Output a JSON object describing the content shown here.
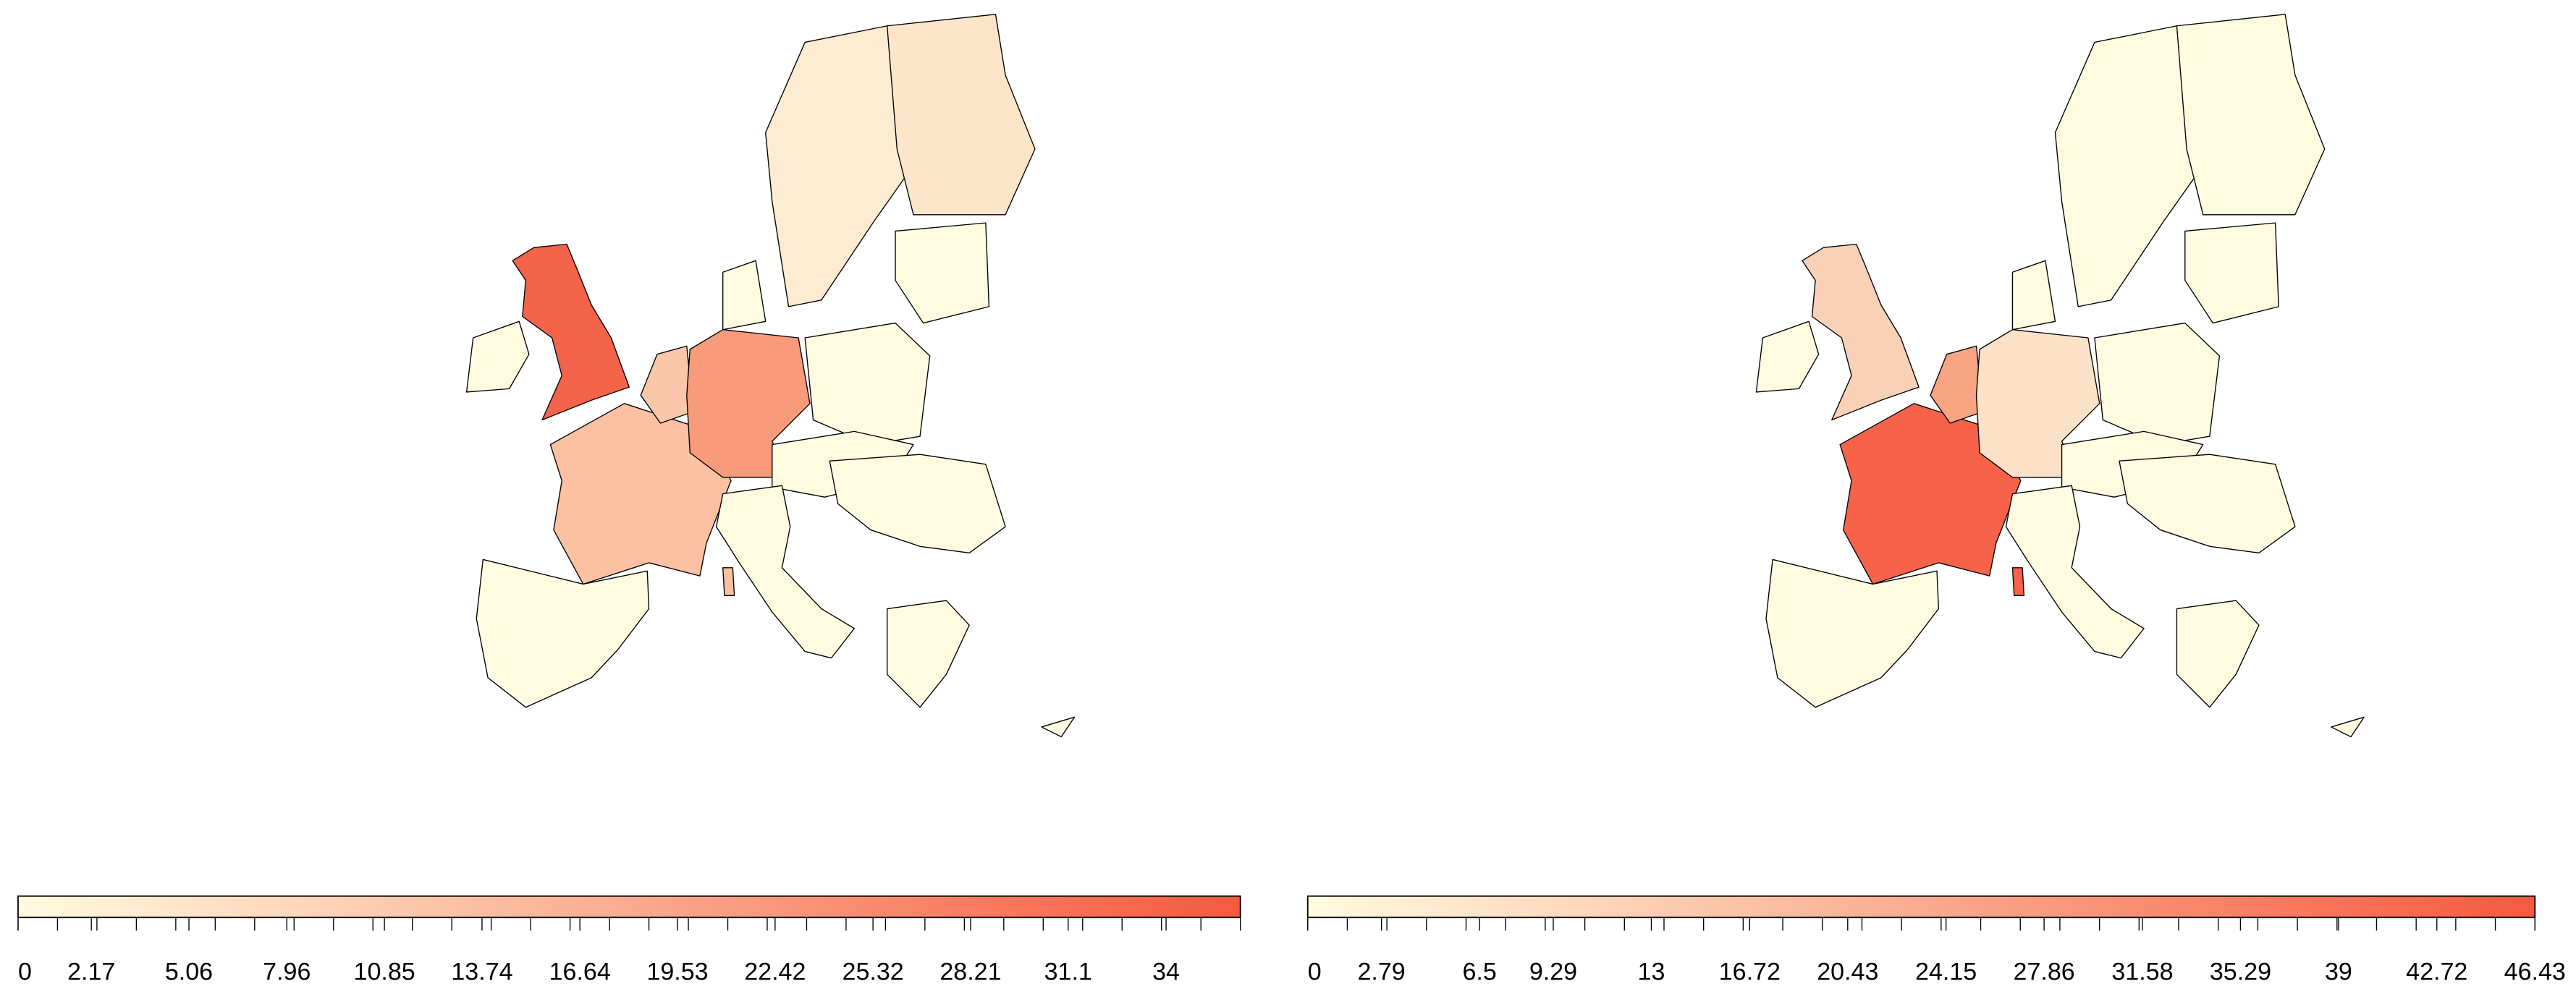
{
  "maps": [
    {
      "legend": {
        "xlim": [
          0,
          36.2
        ],
        "ticks": [
          0,
          2.17,
          5.06,
          7.96,
          10.85,
          13.74,
          16.64,
          19.53,
          22.42,
          25.32,
          28.21,
          31.1,
          34
        ],
        "low_color": "#fffbe0",
        "high_color": "#f65a3e"
      }
    },
    {
      "legend": {
        "xlim": [
          0,
          46.43
        ],
        "ticks": [
          0,
          2.79,
          6.5,
          9.29,
          13,
          16.72,
          20.43,
          24.15,
          27.86,
          31.58,
          35.29,
          39,
          42.72,
          46.43
        ],
        "low_color": "#fffbe0",
        "high_color": "#f65a3e"
      }
    }
  ]
}
